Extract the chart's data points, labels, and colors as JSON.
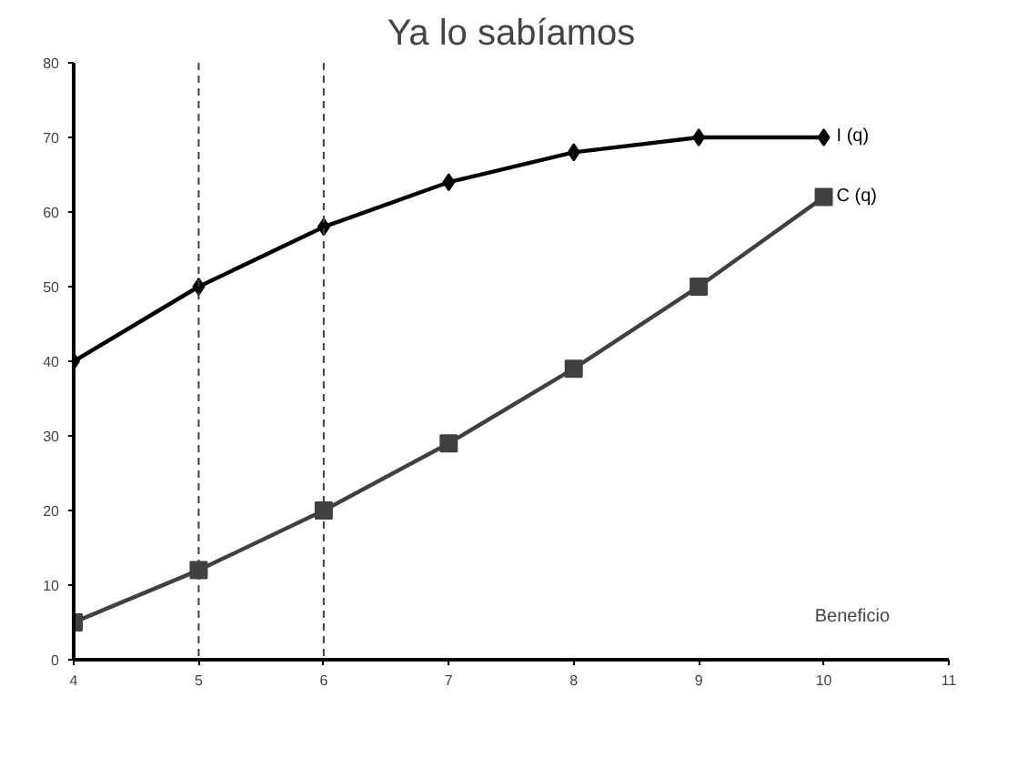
{
  "chart_data": {
    "type": "line",
    "title": "Ya lo sabíamos",
    "x": [
      4,
      5,
      6,
      7,
      8,
      9,
      10
    ],
    "series": [
      {
        "name": "I (q)",
        "color": "#000000",
        "values": [
          40,
          50,
          58,
          64,
          68,
          70,
          70
        ],
        "marker": "diamond"
      },
      {
        "name": "C (q)",
        "color": "#404040",
        "values": [
          5,
          12,
          20,
          29,
          39,
          50,
          62
        ],
        "marker": "square"
      }
    ],
    "xlim": [
      4,
      11
    ],
    "xticks": [
      4,
      5,
      6,
      7,
      8,
      9,
      10,
      11
    ],
    "ylim": [
      0,
      80
    ],
    "yticks": [
      0,
      10,
      20,
      30,
      40,
      50,
      60,
      70,
      80
    ],
    "grid": false,
    "ref_lines": [
      {
        "axis": "x",
        "value": 5,
        "line_style": "dashed",
        "color": "#404040"
      },
      {
        "axis": "x",
        "value": 6,
        "line_style": "dashed",
        "color": "#404040"
      }
    ],
    "annotations": [
      "Beneficio"
    ]
  }
}
